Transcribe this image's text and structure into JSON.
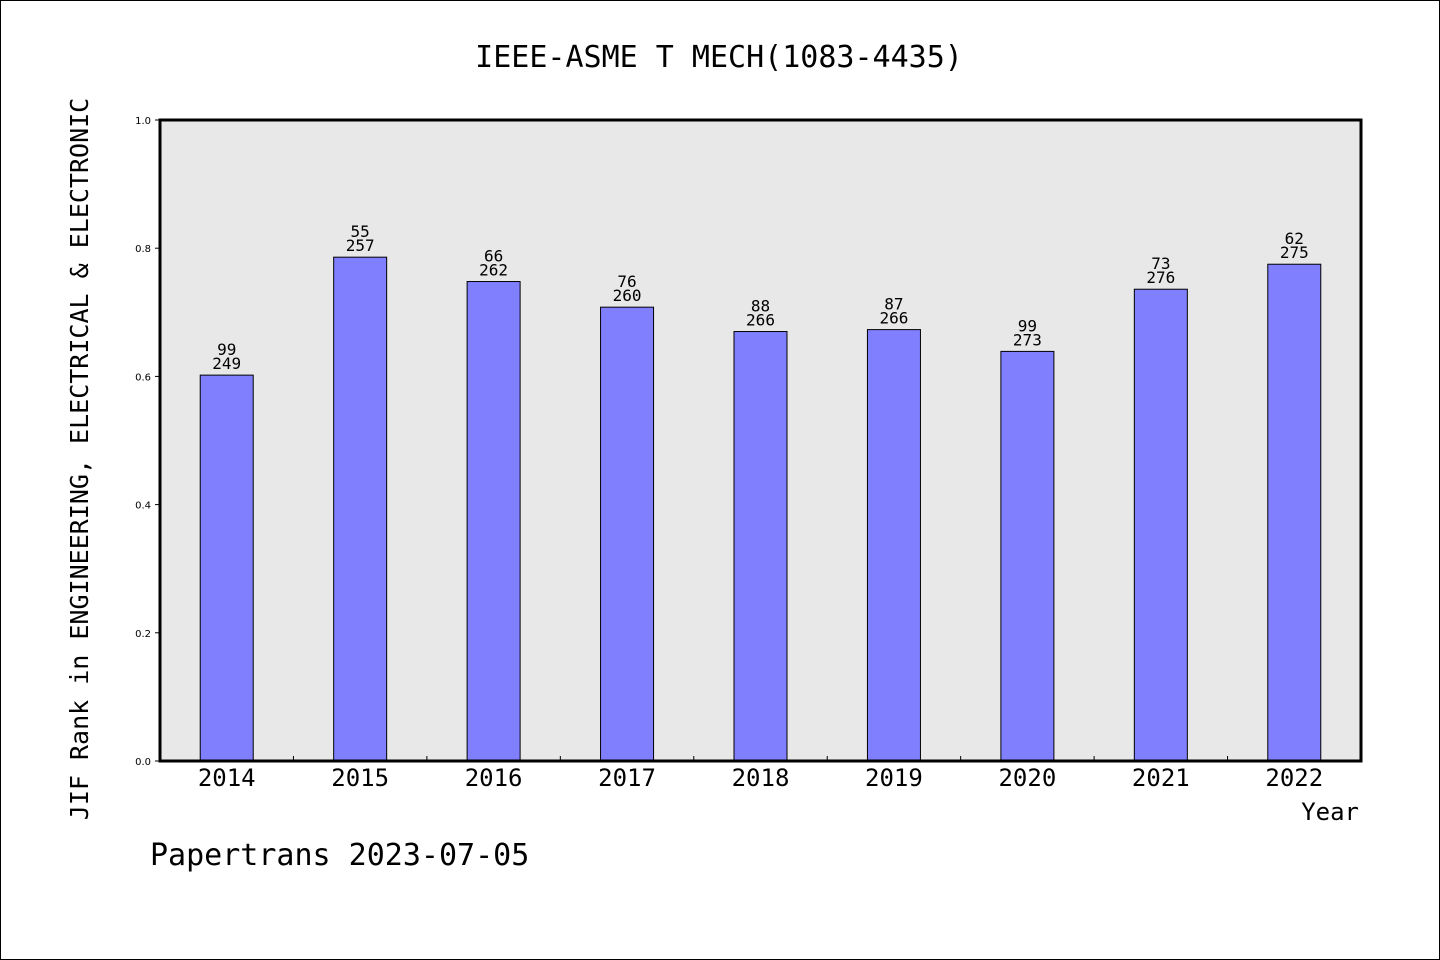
{
  "chart_data": {
    "type": "bar",
    "title": "IEEE-ASME T MECH(1083-4435)",
    "xlabel": "Year",
    "ylabel": "JIF Rank in ENGINEERING, ELECTRICAL & ELECTRONIC",
    "categories": [
      "2014",
      "2015",
      "2016",
      "2017",
      "2018",
      "2019",
      "2020",
      "2021",
      "2022"
    ],
    "values": [
      0.602,
      0.786,
      0.748,
      0.708,
      0.67,
      0.673,
      0.639,
      0.736,
      0.775
    ],
    "rank_labels": [
      "99",
      "55",
      "66",
      "76",
      "88",
      "87",
      "99",
      "73",
      "62"
    ],
    "total_labels": [
      "249",
      "257",
      "262",
      "260",
      "266",
      "266",
      "273",
      "276",
      "275"
    ],
    "ylim": [
      0,
      1.0
    ],
    "yticks": [
      "0.0",
      "0.2",
      "0.4",
      "0.6",
      "0.8",
      "1.0"
    ],
    "grid": false,
    "colors": {
      "bar": "#8080ff",
      "plot_background": "#e8e8e8"
    }
  },
  "footer": "Papertrans 2023-07-05"
}
